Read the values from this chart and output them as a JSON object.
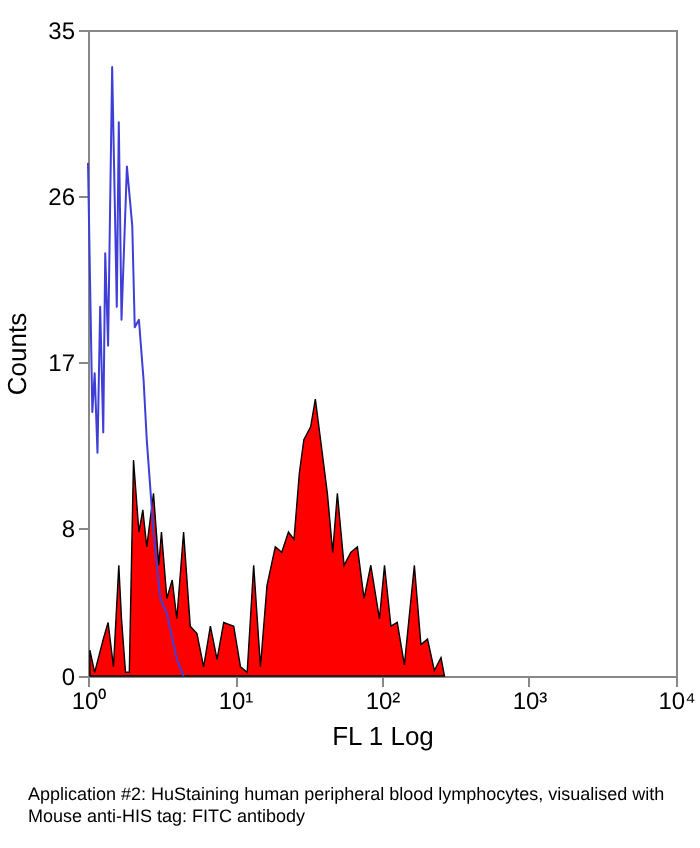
{
  "chart_data": {
    "type": "area",
    "xlabel": "FL 1 Log",
    "ylabel": "Counts",
    "log": "x",
    "xlim": [
      1,
      10000
    ],
    "ylim": [
      0,
      35
    ],
    "xticks": [
      {
        "value": 1,
        "label": "10⁰"
      },
      {
        "value": 10,
        "label": "10¹"
      },
      {
        "value": 100,
        "label": "10²"
      },
      {
        "value": 1000,
        "label": "10³"
      },
      {
        "value": 10000,
        "label": "10⁴"
      }
    ],
    "yticks": [
      0,
      8,
      17,
      26,
      35
    ],
    "grid": false,
    "series": [
      {
        "color": "#ff0000",
        "x": [
          1.03,
          1.11,
          1.27,
          1.37,
          1.49,
          1.62,
          1.69,
          1.8,
          1.91,
          2.04,
          2.22,
          2.36,
          2.51,
          2.79,
          3.03,
          3.16,
          3.44,
          3.74,
          4.02,
          4.47,
          4.96,
          5.51,
          6.12,
          6.8,
          7.55,
          8.38,
          9.8,
          10.9,
          12.1,
          13.4,
          14.9,
          16.5,
          18.8,
          20.8,
          23.1,
          25.2,
          27.4,
          29.4,
          32.7,
          35.2,
          38.2,
          42.5,
          46.2,
          49.7,
          55.2,
          61.3,
          68.0,
          75.5,
          83.9,
          96.1,
          104,
          115,
          127,
          142,
          166,
          184,
          204,
          227,
          252,
          266
        ],
        "values": [
          1.4,
          0.2,
          2,
          2.9,
          0.5,
          6,
          3.1,
          0.2,
          0.2,
          11.7,
          7.8,
          9,
          7,
          9.9,
          6,
          7.8,
          4.2,
          5.2,
          3.1,
          7.8,
          2.7,
          2.3,
          0.5,
          2.7,
          0.9,
          2.9,
          2.7,
          0.5,
          0.2,
          6,
          0.5,
          4.9,
          7,
          6.7,
          7.8,
          7.4,
          11,
          12.8,
          13.5,
          15,
          12.8,
          9.9,
          6.7,
          9.9,
          6,
          6.7,
          7,
          4.2,
          6,
          3.1,
          6,
          2.7,
          2.9,
          0.6,
          6,
          1.7,
          2,
          0.3,
          1,
          0
        ]
      },
      {
        "type": "line",
        "color": "#3f3fd8",
        "x": [
          1,
          1.07,
          1.11,
          1.16,
          1.21,
          1.27,
          1.31,
          1.37,
          1.46,
          1.57,
          1.62,
          1.69,
          1.84,
          2.0,
          2.08,
          2.22,
          2.39,
          2.51,
          2.79,
          3.1,
          3.44,
          4.02,
          4.47
        ],
        "values": [
          27.8,
          14.3,
          16.4,
          12.1,
          20,
          13.2,
          22.9,
          17.9,
          33,
          20,
          30,
          19.3,
          27.6,
          24.4,
          18.9,
          19.3,
          16,
          12.8,
          7.8,
          4.2,
          3.4,
          0.9,
          0
        ]
      }
    ],
    "annotations": [
      "Application #2: HuStaining human peripheral blood lymphocytes, visualised with Mouse anti-HIS tag: FITC antibody"
    ]
  }
}
